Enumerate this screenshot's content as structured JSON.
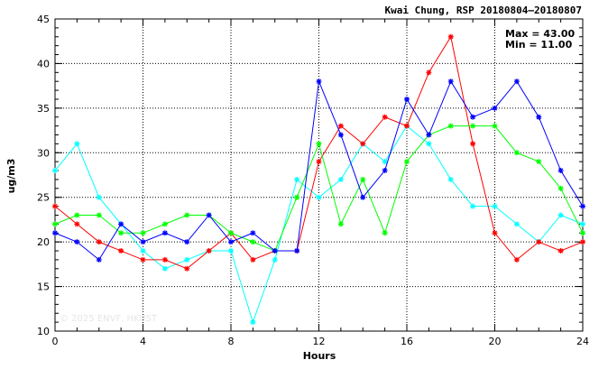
{
  "chart_data": {
    "type": "line",
    "title": "Kwai Chung, RSP 20180804–20180807",
    "xlabel": "Hours",
    "ylabel": "ug/m3",
    "xlim": [
      0,
      24
    ],
    "ylim": [
      10,
      45
    ],
    "xticks": [
      0,
      4,
      8,
      12,
      16,
      20,
      24
    ],
    "yticks": [
      10,
      15,
      20,
      25,
      30,
      35,
      40,
      45
    ],
    "grid": true,
    "max_label": "Max = 43.00",
    "min_label": "Min = 11.00",
    "watermark": "© 2025 ENVF, HKUST",
    "x": [
      0,
      1,
      2,
      3,
      4,
      5,
      6,
      7,
      8,
      9,
      10,
      11,
      12,
      13,
      14,
      15,
      16,
      17,
      18,
      19,
      20,
      21,
      22,
      23,
      24
    ],
    "series": [
      {
        "color": "#00ffff",
        "values": [
          28,
          31,
          25,
          22,
          19,
          17,
          18,
          19,
          19,
          11,
          18,
          27,
          25,
          27,
          31,
          29,
          33,
          31,
          27,
          24,
          24,
          22,
          20,
          23,
          22
        ]
      },
      {
        "color": "#ff0000",
        "values": [
          24,
          22,
          20,
          19,
          18,
          18,
          17,
          19,
          21,
          18,
          19,
          19,
          29,
          33,
          31,
          34,
          33,
          39,
          43,
          31,
          21,
          18,
          20,
          19,
          20
        ]
      },
      {
        "color": "#00ff00",
        "values": [
          22,
          23,
          23,
          21,
          21,
          22,
          23,
          23,
          21,
          20,
          19,
          25,
          31,
          22,
          27,
          21,
          29,
          32,
          33,
          33,
          33,
          30,
          29,
          26,
          21
        ]
      },
      {
        "color": "#0000ff",
        "values": [
          21,
          20,
          18,
          22,
          20,
          21,
          20,
          23,
          20,
          21,
          19,
          19,
          38,
          32,
          25,
          28,
          36,
          32,
          38,
          34,
          35,
          38,
          34,
          28,
          24
        ]
      }
    ]
  }
}
